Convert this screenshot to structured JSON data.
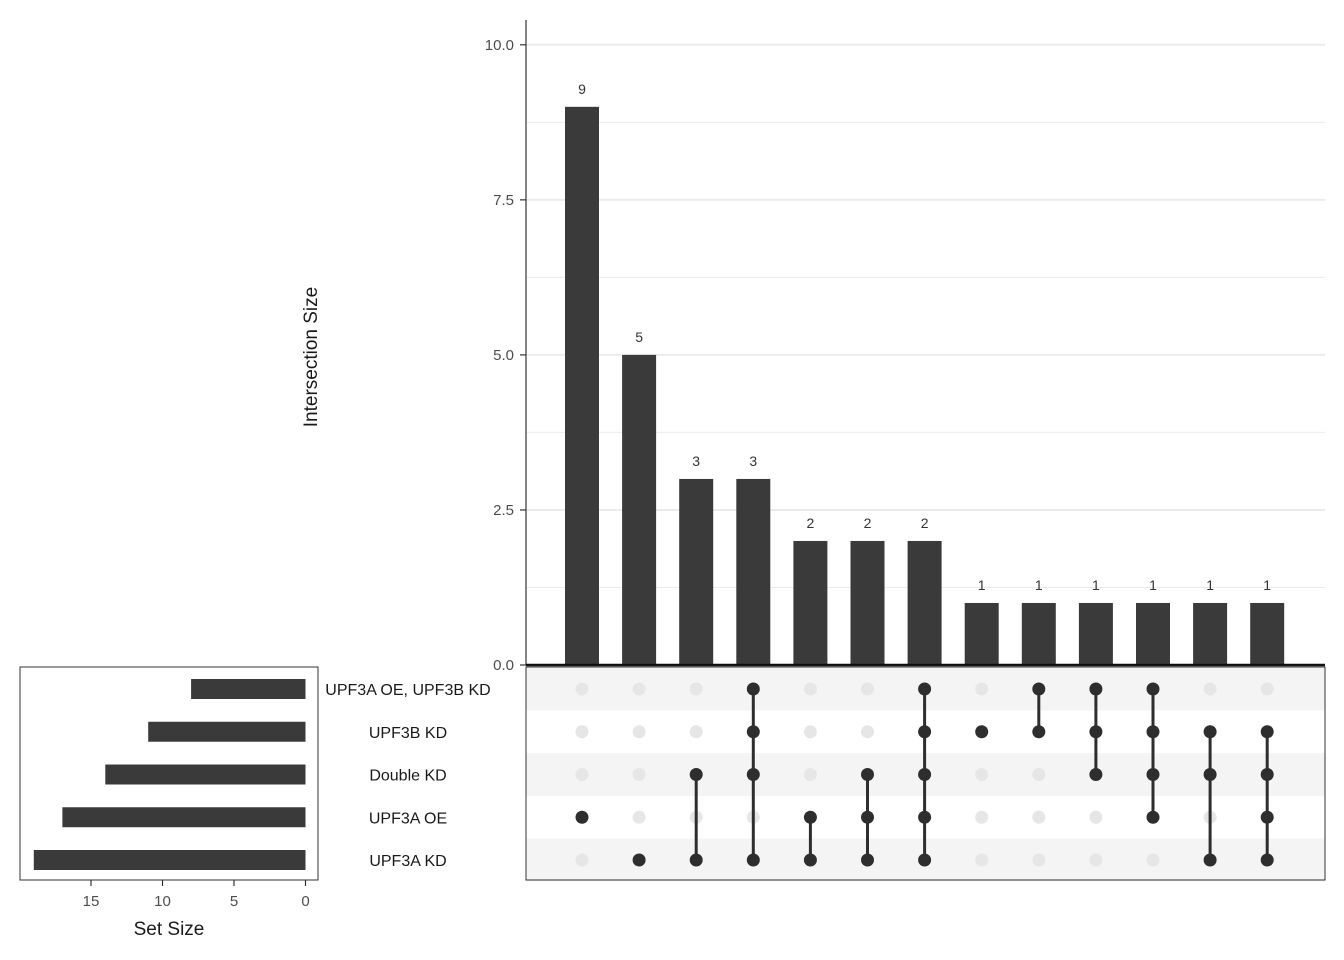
{
  "chart_data": {
    "type": "upset",
    "ylabel": "Intersection Size",
    "ylim": [
      0,
      10.4
    ],
    "yticks": [
      "0.0",
      "2.5",
      "5.0",
      "7.5",
      "10.0"
    ],
    "set_size_label": "Set Size",
    "set_size_ticks": [
      "15",
      "10",
      "5",
      "0"
    ],
    "set_size_xlim": [
      0,
      20
    ],
    "sets": [
      {
        "name": "UPF3A OE, UPF3B KD",
        "size": 8
      },
      {
        "name": "UPF3B KD",
        "size": 11
      },
      {
        "name": "Double KD",
        "size": 14
      },
      {
        "name": "UPF3A OE",
        "size": 17
      },
      {
        "name": "UPF3A KD",
        "size": 19
      }
    ],
    "intersections": [
      {
        "value": 9,
        "label": "9",
        "members": [
          3
        ]
      },
      {
        "value": 5,
        "label": "5",
        "members": [
          4
        ]
      },
      {
        "value": 3,
        "label": "3",
        "members": [
          2,
          4
        ]
      },
      {
        "value": 3,
        "label": "3",
        "members": [
          0,
          1,
          2,
          4
        ]
      },
      {
        "value": 2,
        "label": "2",
        "members": [
          3,
          4
        ]
      },
      {
        "value": 2,
        "label": "2",
        "members": [
          2,
          3,
          4
        ]
      },
      {
        "value": 2,
        "label": "2",
        "members": [
          0,
          1,
          2,
          3,
          4
        ]
      },
      {
        "value": 1,
        "label": "1",
        "members": [
          1
        ]
      },
      {
        "value": 1,
        "label": "1",
        "members": [
          0,
          1
        ]
      },
      {
        "value": 1,
        "label": "1",
        "members": [
          0,
          1,
          2
        ]
      },
      {
        "value": 1,
        "label": "1",
        "members": [
          0,
          1,
          2,
          3
        ]
      },
      {
        "value": 1,
        "label": "1",
        "members": [
          1,
          2,
          4
        ]
      },
      {
        "value": 1,
        "label": "1",
        "members": [
          1,
          2,
          3,
          4
        ]
      }
    ],
    "colors": {
      "bar": "#3a3a3a",
      "dot_active": "#2e2e2e",
      "dot_inactive": "#e6e6e6",
      "row_stripe": "#f4f4f4",
      "grid": "#ebebeb"
    }
  }
}
